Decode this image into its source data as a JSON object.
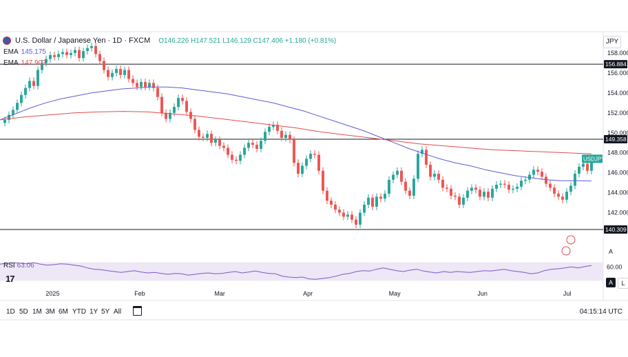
{
  "header": {
    "title": "U.S. Dollar / Japanese Yen · 1D · FXCM",
    "ohlc": "O146.226 H147.521 L146.129 C147.406 +1.180 (+0.81%)"
  },
  "indicators": {
    "ema_fast": {
      "label": "EMA",
      "value": "145.175"
    },
    "ema_slow": {
      "label": "EMA",
      "value": "147.903"
    },
    "rsi": {
      "label": "RSI",
      "value": "63.06",
      "tick": "60.00"
    }
  },
  "currency_button": "JPY",
  "toolbar": {
    "ranges": [
      "1D",
      "5D",
      "1M",
      "3M",
      "6M",
      "YTD",
      "1Y",
      "5Y",
      "All"
    ],
    "clock": "04:15:14 UTC",
    "auto_label": "A",
    "log_label": "L"
  },
  "colors": {
    "up": "#26a69a",
    "down": "#ef5350",
    "ema_fast": "#5b5bd6",
    "ema_slow": "#e04b4b",
    "rsi_line": "#7e57c2",
    "rsi_band": "#ede7f6",
    "level_line": "#131722"
  },
  "chart_data": {
    "type": "candlestick",
    "title": "U.S. Dollar / Japanese Yen · 1D · FXCM",
    "y_axis": {
      "min": 139,
      "max": 160,
      "ticks": [
        158,
        156,
        154,
        152,
        150,
        148,
        146,
        144,
        142
      ]
    },
    "x_axis": {
      "start_date": "2024-12-16",
      "end_date": "2025-07-15",
      "labels": [
        {
          "text": "2025",
          "date": "2025-01-01"
        },
        {
          "text": "Feb",
          "date": "2025-02-01"
        },
        {
          "text": "Mar",
          "date": "2025-03-01"
        },
        {
          "text": "Apr",
          "date": "2025-04-01"
        },
        {
          "text": "May",
          "date": "2025-05-01"
        },
        {
          "text": "Jun",
          "date": "2025-06-01"
        },
        {
          "text": "Jul",
          "date": "2025-07-01"
        }
      ]
    },
    "horizontal_levels": [
      156.884,
      149.358,
      140.309
    ],
    "level_labels": [
      "156.884",
      "149.358",
      "140.309"
    ],
    "last_price_tag": "USDJPY",
    "last_close": 147.406,
    "closes": [
      151.3,
      151.8,
      152.3,
      153.0,
      153.8,
      154.5,
      155.2,
      154.7,
      156.3,
      157.0,
      157.4,
      157.8,
      157.6,
      157.9,
      158.1,
      157.8,
      158.0,
      158.3,
      157.5,
      158.2,
      158.5,
      158.7,
      157.9,
      157.2,
      156.3,
      155.6,
      156.0,
      156.4,
      155.8,
      156.3,
      155.4,
      155.0,
      154.6,
      155.1,
      154.6,
      155.0,
      154.5,
      153.6,
      152.0,
      151.4,
      152.0,
      152.6,
      153.5,
      153.2,
      152.1,
      151.4,
      150.3,
      149.6,
      149.5,
      149.9,
      149.0,
      149.3,
      148.7,
      148.5,
      147.8,
      147.3,
      147.2,
      147.8,
      148.5,
      149.0,
      148.8,
      148.4,
      149.2,
      150.1,
      150.6,
      150.8,
      150.2,
      149.5,
      149.8,
      149.3,
      147.0,
      145.9,
      146.7,
      147.4,
      147.9,
      147.8,
      146.2,
      144.2,
      143.2,
      142.8,
      142.3,
      142.0,
      141.6,
      141.8,
      141.3,
      140.8,
      142.0,
      142.8,
      143.5,
      142.6,
      143.6,
      143.4,
      143.9,
      145.3,
      145.8,
      146.2,
      145.1,
      144.2,
      143.7,
      145.4,
      147.9,
      148.3,
      146.8,
      145.6,
      145.9,
      145.3,
      144.5,
      144.4,
      143.7,
      143.6,
      142.8,
      143.5,
      144.2,
      144.5,
      144.3,
      143.6,
      144.1,
      143.5,
      144.4,
      144.8,
      144.9,
      144.8,
      144.3,
      144.4,
      144.6,
      145.2,
      145.3,
      145.8,
      146.3,
      146.1,
      145.6,
      144.9,
      144.5,
      143.9,
      143.6,
      143.3,
      144.1,
      144.7,
      145.9,
      146.6,
      146.9,
      146.2,
      147.4
    ],
    "series": [
      {
        "name": "EMA",
        "values": [
          151.3,
          151.9,
          152.5,
          153.0,
          153.4,
          153.7,
          154.0,
          154.2,
          154.4,
          154.5,
          154.6,
          154.6,
          154.5,
          154.3,
          154.1,
          153.9,
          153.6,
          153.3,
          153.0,
          152.6,
          152.2,
          151.7,
          151.2,
          150.7,
          150.2,
          149.6,
          149.0,
          148.4,
          147.9,
          147.4,
          147.0,
          146.7,
          146.3,
          146.0,
          145.7,
          145.5,
          145.3,
          145.2,
          145.2,
          145.18
        ]
      },
      {
        "name": "EMA",
        "values": [
          151.3,
          151.6,
          151.8,
          152.0,
          152.1,
          152.15,
          152.1,
          151.9,
          151.7,
          151.4,
          151.1,
          150.8,
          150.5,
          150.1,
          149.8,
          149.5,
          149.2,
          148.9,
          148.7,
          148.5,
          148.3,
          148.2,
          148.1,
          148.0,
          147.9
        ]
      }
    ],
    "rsi_values": [
      66,
      68,
      69,
      68,
      67,
      69,
      66,
      64,
      65,
      67,
      66,
      64,
      62,
      58,
      55,
      54,
      52,
      50,
      48,
      50,
      52,
      49,
      47,
      48,
      46,
      44,
      46,
      45,
      42,
      44,
      46,
      47,
      45,
      46,
      48,
      50,
      47,
      49,
      51,
      48,
      46,
      45,
      40,
      38,
      37,
      38,
      34,
      33,
      35,
      37,
      40,
      44,
      46,
      50,
      52,
      51,
      55,
      58,
      55,
      52,
      50,
      53,
      55,
      51,
      49,
      47,
      50,
      48,
      50,
      49,
      48,
      50,
      52,
      51,
      53,
      55,
      52,
      50,
      48,
      45,
      47,
      52,
      55,
      56,
      58,
      60,
      58,
      61,
      63.06
    ],
    "rsi_ylim": [
      20,
      80
    ]
  }
}
